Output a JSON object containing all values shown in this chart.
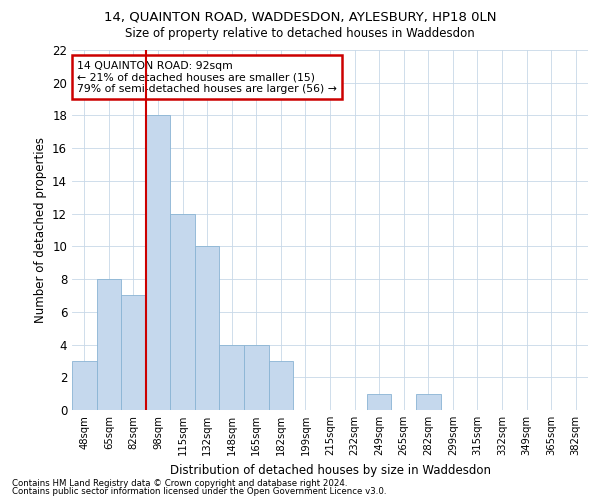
{
  "title1": "14, QUAINTON ROAD, WADDESDON, AYLESBURY, HP18 0LN",
  "title2": "Size of property relative to detached houses in Waddesdon",
  "xlabel": "Distribution of detached houses by size in Waddesdon",
  "ylabel": "Number of detached properties",
  "categories": [
    "48sqm",
    "65sqm",
    "82sqm",
    "98sqm",
    "115sqm",
    "132sqm",
    "148sqm",
    "165sqm",
    "182sqm",
    "199sqm",
    "215sqm",
    "232sqm",
    "249sqm",
    "265sqm",
    "282sqm",
    "299sqm",
    "315sqm",
    "332sqm",
    "349sqm",
    "365sqm",
    "382sqm"
  ],
  "values": [
    3,
    8,
    7,
    18,
    12,
    10,
    4,
    4,
    3,
    0,
    0,
    0,
    1,
    0,
    1,
    0,
    0,
    0,
    0,
    0,
    0
  ],
  "bar_color": "#c5d8ed",
  "bar_edge_color": "#8ab4d4",
  "vline_x_index": 3,
  "vline_color": "#cc0000",
  "ylim": [
    0,
    22
  ],
  "yticks": [
    0,
    2,
    4,
    6,
    8,
    10,
    12,
    14,
    16,
    18,
    20,
    22
  ],
  "annotation_title": "14 QUAINTON ROAD: 92sqm",
  "annotation_line1": "← 21% of detached houses are smaller (15)",
  "annotation_line2": "79% of semi-detached houses are larger (56) →",
  "annotation_box_color": "#cc0000",
  "footer1": "Contains HM Land Registry data © Crown copyright and database right 2024.",
  "footer2": "Contains public sector information licensed under the Open Government Licence v3.0.",
  "background_color": "#ffffff",
  "grid_color": "#c8d8e8"
}
